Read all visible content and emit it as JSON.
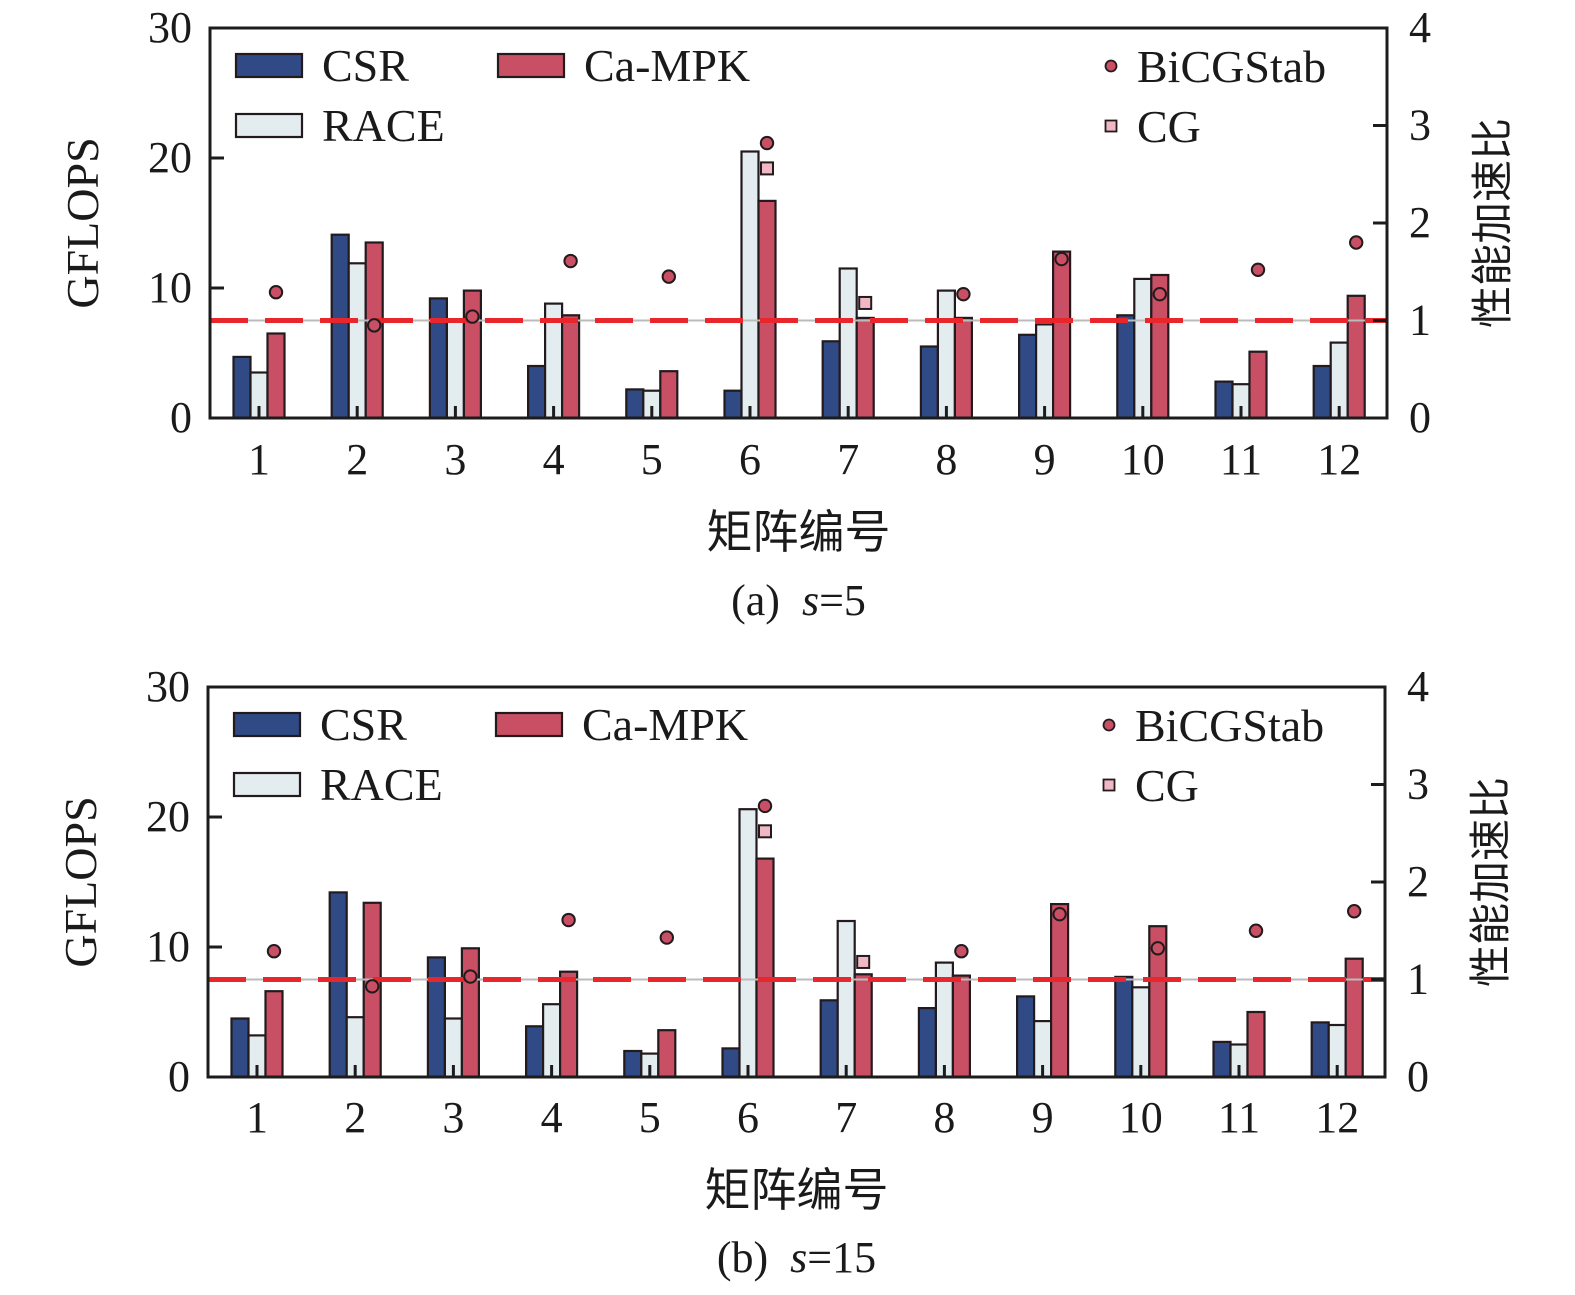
{
  "figure": {
    "panels": [
      "(a)",
      "(b)"
    ]
  },
  "legend": {
    "bars": [
      {
        "name": "CSR",
        "color": "#2f4a84"
      },
      {
        "name": "RACE",
        "color": "#e3ecef"
      },
      {
        "name": "Ca-MPK",
        "color": "#c95064"
      }
    ],
    "markers": [
      {
        "name": "BiCGStab",
        "shape": "circle",
        "color": "#c95064"
      },
      {
        "name": "CG",
        "shape": "square",
        "color": "#f0b8c4"
      }
    ]
  },
  "colors": {
    "baseline": "#e8262b",
    "baseline_thin": "#bbbbbb",
    "axis": "#1c1c1c",
    "edge": "#231a1e"
  },
  "chart_data": [
    {
      "type": "bar",
      "caption_prefix": "(a)",
      "caption_var": "s",
      "caption_value": "=5",
      "xlabel": "矩阵编号",
      "ylabel": "GFLOPS",
      "y2label": "性能加速比",
      "categories": [
        "1",
        "2",
        "3",
        "4",
        "5",
        "6",
        "7",
        "8",
        "9",
        "10",
        "11",
        "12"
      ],
      "ylim": [
        0,
        30
      ],
      "yticks": [
        "0",
        "10",
        "20",
        "30"
      ],
      "y2lim": [
        0,
        4
      ],
      "y2ticks": [
        "0",
        "1",
        "2",
        "3",
        "4"
      ],
      "reference_line": {
        "axis": "y2",
        "value": 1,
        "style": "dashed"
      },
      "legend_placement": "top",
      "grid": false,
      "series": [
        {
          "name": "CSR",
          "axis": "y",
          "values": [
            4.7,
            14.1,
            9.2,
            4.0,
            2.2,
            2.1,
            5.9,
            5.5,
            6.4,
            7.9,
            2.8,
            4.0
          ]
        },
        {
          "name": "RACE",
          "axis": "y",
          "values": [
            3.5,
            11.9,
            7.5,
            8.8,
            2.1,
            20.5,
            11.5,
            9.8,
            7.2,
            10.7,
            2.6,
            5.8
          ]
        },
        {
          "name": "Ca-MPK",
          "axis": "y",
          "values": [
            6.5,
            13.5,
            9.8,
            7.9,
            3.6,
            16.7,
            7.7,
            7.7,
            12.8,
            11.0,
            5.1,
            9.4
          ]
        },
        {
          "name": "BiCGStab",
          "axis": "y2",
          "type": "scatter",
          "values": [
            1.29,
            0.95,
            1.04,
            1.61,
            1.45,
            2.82,
            null,
            1.27,
            1.63,
            1.27,
            1.52,
            1.8
          ]
        },
        {
          "name": "CG",
          "axis": "y2",
          "type": "scatter",
          "values": [
            null,
            null,
            null,
            null,
            null,
            2.56,
            1.18,
            null,
            null,
            null,
            null,
            null
          ]
        }
      ]
    },
    {
      "type": "bar",
      "caption_prefix": "(b)",
      "caption_var": "s",
      "caption_value": "=15",
      "xlabel": "矩阵编号",
      "ylabel": "GFLOPS",
      "y2label": "性能加速比",
      "categories": [
        "1",
        "2",
        "3",
        "4",
        "5",
        "6",
        "7",
        "8",
        "9",
        "10",
        "11",
        "12"
      ],
      "ylim": [
        0,
        30
      ],
      "yticks": [
        "0",
        "10",
        "20",
        "30"
      ],
      "y2lim": [
        0,
        4
      ],
      "y2ticks": [
        "0",
        "1",
        "2",
        "3",
        "4"
      ],
      "reference_line": {
        "axis": "y2",
        "value": 1,
        "style": "dashed"
      },
      "legend_placement": "top",
      "grid": false,
      "series": [
        {
          "name": "CSR",
          "axis": "y",
          "values": [
            4.5,
            14.2,
            9.2,
            3.9,
            2.0,
            2.2,
            5.9,
            5.3,
            6.2,
            7.7,
            2.7,
            4.2
          ]
        },
        {
          "name": "RACE",
          "axis": "y",
          "values": [
            3.2,
            4.6,
            4.5,
            5.6,
            1.8,
            20.6,
            12.0,
            8.8,
            4.3,
            6.9,
            2.5,
            4.0
          ]
        },
        {
          "name": "Ca-MPK",
          "axis": "y",
          "values": [
            6.6,
            13.4,
            9.9,
            8.1,
            3.6,
            16.8,
            7.9,
            7.8,
            13.3,
            11.6,
            5.0,
            9.1
          ]
        },
        {
          "name": "BiCGStab",
          "axis": "y2",
          "type": "scatter",
          "values": [
            1.29,
            0.93,
            1.03,
            1.61,
            1.43,
            2.78,
            null,
            1.29,
            1.67,
            1.32,
            1.5,
            1.7
          ]
        },
        {
          "name": "CG",
          "axis": "y2",
          "type": "scatter",
          "values": [
            null,
            null,
            null,
            null,
            null,
            2.52,
            1.18,
            null,
            null,
            null,
            null,
            null
          ]
        }
      ]
    }
  ]
}
